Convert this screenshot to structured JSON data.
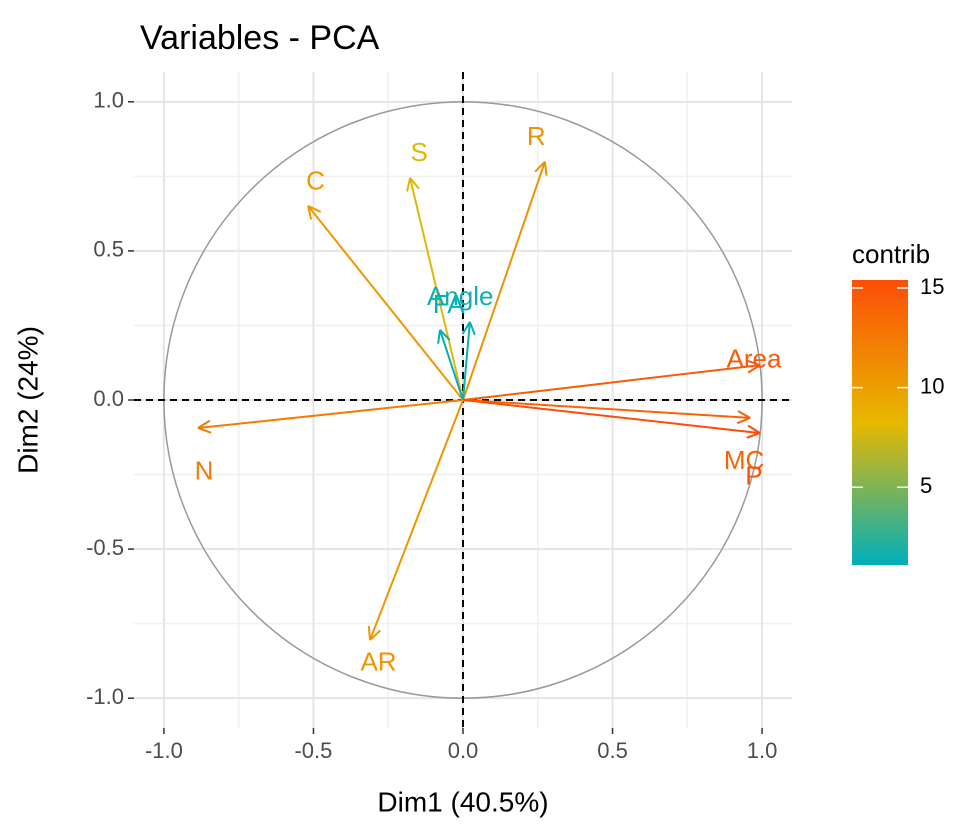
{
  "chart_data": {
    "type": "pca-variables",
    "title": "Variables - PCA",
    "x_label": "Dim1 (40.5%)",
    "y_label": "Dim2 (24%)",
    "xlim": [
      -1.1,
      1.1
    ],
    "ylim": [
      -1.1,
      1.1
    ],
    "xticks": [
      {
        "value": -1,
        "label": "-1.0"
      },
      {
        "value": -0.5,
        "label": "-0.5"
      },
      {
        "value": 0,
        "label": "0.0"
      },
      {
        "value": 0.5,
        "label": "0.5"
      },
      {
        "value": 1,
        "label": "1.0"
      }
    ],
    "yticks": [
      {
        "value": -1,
        "label": "-1.0"
      },
      {
        "value": -0.5,
        "label": "-0.5"
      },
      {
        "value": 0,
        "label": "0.0"
      },
      {
        "value": 0.5,
        "label": "0.5"
      },
      {
        "value": 1,
        "label": "1.0"
      }
    ],
    "grid": true,
    "points": [
      {
        "name": "N",
        "x": -0.886,
        "y": -0.094,
        "contrib": 12.3
      },
      {
        "name": "C",
        "x": -0.518,
        "y": 0.651,
        "contrib": 10.5
      },
      {
        "name": "S",
        "x": -0.177,
        "y": 0.745,
        "contrib": 8
      },
      {
        "name": "R",
        "x": 0.274,
        "y": 0.799,
        "contrib": 10.8
      },
      {
        "name": "Angle",
        "x": 0.023,
        "y": 0.262,
        "contrib": 1.5
      },
      {
        "name": "FA",
        "x": -0.077,
        "y": 0.235,
        "contrib": 1.1
      },
      {
        "name": "Area",
        "x": 0.993,
        "y": 0.117,
        "contrib": 14.5
      },
      {
        "name": "MC",
        "x": 0.96,
        "y": -0.06,
        "contrib": 14
      },
      {
        "name": "P",
        "x": 0.993,
        "y": -0.111,
        "contrib": 15.4
      },
      {
        "name": "AR",
        "x": -0.311,
        "y": -0.805,
        "contrib": 10.6
      }
    ],
    "legend": {
      "title": "contrib",
      "colors": [
        "#00AFBB",
        "#E7B800",
        "#FC4E07"
      ],
      "lim": [
        1.1,
        15.4
      ],
      "ticks": [
        5,
        10,
        15
      ]
    }
  }
}
